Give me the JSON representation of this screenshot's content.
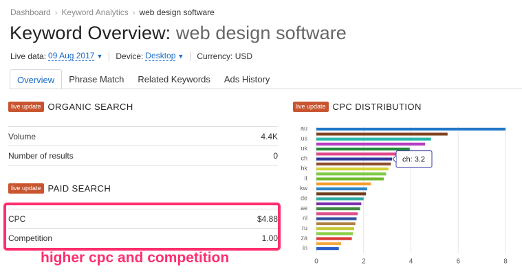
{
  "breadcrumb": {
    "items": [
      "Dashboard",
      "Keyword Analytics"
    ],
    "current": "web design software",
    "separator": "›"
  },
  "header": {
    "title_prefix": "Keyword Overview:",
    "title_keyword": "web design software"
  },
  "meta": {
    "live_data_label": "Live data:",
    "live_data_value": "09 Aug 2017",
    "device_label": "Device:",
    "device_value": "Desktop",
    "currency_label": "Currency: USD"
  },
  "tabs": [
    {
      "label": "Overview",
      "active": true
    },
    {
      "label": "Phrase Match",
      "active": false
    },
    {
      "label": "Related Keywords",
      "active": false
    },
    {
      "label": "Ads History",
      "active": false
    }
  ],
  "organic": {
    "badge": "live update",
    "title": "ORGANIC SEARCH",
    "rows": [
      {
        "label": "Volume",
        "value": "4.4K"
      },
      {
        "label": "Number of results",
        "value": "0"
      }
    ]
  },
  "paid": {
    "badge": "live update",
    "title": "PAID SEARCH",
    "rows": [
      {
        "label": "CPC",
        "value": "$4.88"
      },
      {
        "label": "Competition",
        "value": "1.00"
      }
    ]
  },
  "annotation": "higher cpc and competition",
  "cpc": {
    "badge": "live update",
    "title": "CPC DISTRIBUTION"
  },
  "chart_data": {
    "type": "bar",
    "orientation": "horizontal",
    "title": "CPC DISTRIBUTION",
    "xlim": [
      0,
      8
    ],
    "x_ticks": [
      0,
      2,
      4,
      6,
      8
    ],
    "grid": true,
    "categories": [
      "au",
      "",
      "us",
      "",
      "uk",
      "",
      "ch",
      "",
      "hk",
      "",
      "it",
      "",
      "kw",
      "",
      "de",
      "",
      "ae",
      "",
      "nl",
      "",
      "ru",
      "",
      "za",
      "",
      "in"
    ],
    "values": [
      8.0,
      5.55,
      4.85,
      4.6,
      3.95,
      3.4,
      3.2,
      3.15,
      3.05,
      2.95,
      2.85,
      2.3,
      2.15,
      2.1,
      2.0,
      1.9,
      1.85,
      1.75,
      1.7,
      1.65,
      1.6,
      1.55,
      1.5,
      1.05,
      0.95
    ],
    "colors": [
      "#1f77c8",
      "#7f3f1f",
      "#27b8a8",
      "#b43fc0",
      "#1f8a3a",
      "#e0468a",
      "#2f3a9c",
      "#8f4f2f",
      "#d4d234",
      "#7fc94a",
      "#6fb82a",
      "#f59a2a",
      "#2a86c8",
      "#6f3f1f",
      "#2aa8a0",
      "#7a2fae",
      "#3f8a3f",
      "#e04f8a",
      "#2f4f9c",
      "#b07f3f",
      "#c8c83a",
      "#8ad04a",
      "#d83a3a",
      "#f5a83a",
      "#2a5ec8"
    ],
    "tooltip": "ch: 3.2"
  }
}
